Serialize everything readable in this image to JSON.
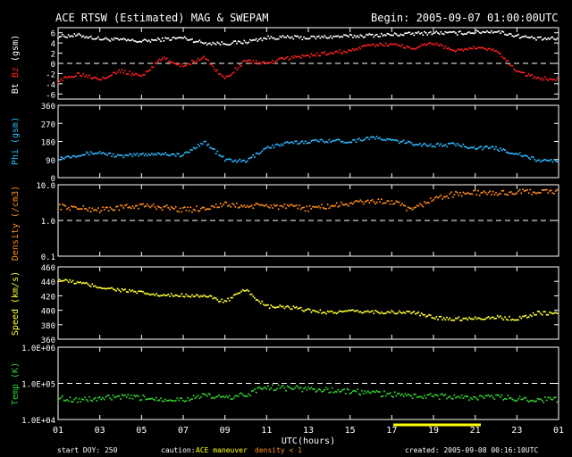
{
  "header": {
    "title": "ACE RTSW (Estimated) MAG & SWEPAM",
    "begin": "Begin: 2005-09-07 01:00:00UTC"
  },
  "footer": {
    "start_doy": "start DOY: 250",
    "caution_label": "caution:",
    "caution_maneuver": "ACE maneuver",
    "caution_density": "density < 1",
    "created": "created: 2005-09-08 00:16:10UTC"
  },
  "colors": {
    "bt": "#ffffff",
    "bz": "#ff2020",
    "phi": "#30b8ff",
    "density": "#ff8c1a",
    "speed": "#ffff30",
    "temp": "#30d030",
    "frame": "#ffffff",
    "maneuver": "#ffff00",
    "density_low": "#ff8c1a"
  },
  "chart_data": [
    {
      "type": "scatter",
      "panel": "mag",
      "ylabel_parts": [
        "Bt",
        "Bz",
        "(gsm)"
      ],
      "xlabel": "UTC(hours)",
      "xticks": [
        "01",
        "03",
        "05",
        "07",
        "09",
        "11",
        "13",
        "15",
        "17",
        "19",
        "21",
        "23",
        "01"
      ],
      "ylim": [
        -7,
        7
      ],
      "yticks": [
        6,
        4,
        2,
        0,
        -2,
        -4,
        -6
      ],
      "ytick_labels": [
        "6",
        "4",
        "2",
        "0",
        "-2",
        "-4",
        "-6"
      ],
      "ref_lines": [
        0
      ],
      "series": [
        {
          "name": "Bt",
          "color": "#ffffff",
          "x": [
            0,
            1,
            2,
            3,
            4,
            5,
            6,
            7,
            8,
            9,
            10,
            11,
            12,
            13,
            14,
            15,
            16,
            17,
            18,
            19,
            20,
            21,
            22,
            23
          ],
          "y": [
            5.3,
            5.5,
            4.8,
            4.6,
            4.3,
            4.7,
            5.0,
            4.0,
            3.9,
            4.2,
            5.0,
            5.1,
            5.0,
            5.2,
            5.3,
            5.5,
            5.6,
            5.8,
            6.0,
            5.9,
            6.1,
            6.3,
            5.4,
            4.8
          ]
        },
        {
          "name": "Bz",
          "color": "#ff2020",
          "x": [
            0,
            1,
            2,
            3,
            4,
            5,
            6,
            7,
            8,
            9,
            10,
            11,
            12,
            13,
            14,
            15,
            16,
            17,
            18,
            19,
            20,
            21,
            22,
            23
          ],
          "y": [
            -3.5,
            -2.0,
            -3.0,
            -1.5,
            -2.5,
            1.0,
            -0.5,
            1.2,
            -3.0,
            0.5,
            0.0,
            1.0,
            1.5,
            2.0,
            2.5,
            3.5,
            3.8,
            3.0,
            4.0,
            2.5,
            3.0,
            2.5,
            -1.5,
            -3.0
          ]
        }
      ]
    },
    {
      "type": "scatter",
      "panel": "phi",
      "ylabel": "Phi (gsm)",
      "ylim": [
        0,
        360
      ],
      "yticks": [
        360,
        270,
        180,
        90,
        0
      ],
      "ytick_labels": [
        "360",
        "270",
        "180",
        "90",
        "0"
      ],
      "series": [
        {
          "name": "Phi",
          "color": "#30b8ff",
          "x": [
            0,
            1,
            2,
            3,
            4,
            5,
            6,
            7,
            8,
            9,
            10,
            11,
            12,
            13,
            14,
            15,
            16,
            17,
            18,
            19,
            20,
            21,
            22,
            23
          ],
          "y": [
            95,
            115,
            125,
            105,
            115,
            120,
            110,
            180,
            90,
            80,
            150,
            170,
            180,
            185,
            180,
            200,
            185,
            170,
            160,
            165,
            150,
            145,
            120,
            85
          ]
        }
      ]
    },
    {
      "type": "scatter",
      "panel": "density",
      "ylabel": "Density (/cm3)",
      "yscale": "log",
      "ylim": [
        0.1,
        10.0
      ],
      "yticks": [
        10.0,
        1.0,
        0.1
      ],
      "ytick_labels": [
        "10.0",
        "1.0",
        "0.1"
      ],
      "ref_lines": [
        1.0
      ],
      "series": [
        {
          "name": "Density",
          "color": "#ff8c1a",
          "x": [
            0,
            1,
            2,
            3,
            4,
            5,
            6,
            7,
            8,
            9,
            10,
            11,
            12,
            13,
            14,
            15,
            16,
            17,
            18,
            19,
            20,
            21,
            22,
            23
          ],
          "y": [
            2.5,
            2.2,
            2.0,
            2.3,
            2.6,
            2.4,
            2.0,
            2.2,
            2.8,
            2.5,
            2.6,
            2.4,
            2.2,
            2.5,
            3.0,
            3.5,
            3.3,
            1.8,
            4.0,
            5.5,
            6.0,
            5.8,
            6.2,
            6.5
          ]
        }
      ]
    },
    {
      "type": "scatter",
      "panel": "speed",
      "ylabel": "Speed (km/s)",
      "ylim": [
        360,
        460
      ],
      "yticks": [
        460,
        440,
        420,
        400,
        380,
        360
      ],
      "ytick_labels": [
        "460",
        "440",
        "420",
        "400",
        "380",
        "360"
      ],
      "series": [
        {
          "name": "Speed",
          "color": "#ffff30",
          "x": [
            0,
            1,
            2,
            3,
            4,
            5,
            6,
            7,
            8,
            9,
            10,
            11,
            12,
            13,
            14,
            15,
            16,
            17,
            18,
            19,
            20,
            21,
            22,
            23
          ],
          "y": [
            442,
            438,
            432,
            428,
            424,
            420,
            421,
            420,
            412,
            428,
            405,
            404,
            400,
            397,
            398,
            398,
            397,
            397,
            390,
            388,
            389,
            390,
            388,
            396
          ]
        }
      ]
    },
    {
      "type": "scatter",
      "panel": "temp",
      "ylabel": "Temp (K)",
      "yscale": "log",
      "ylim": [
        10000,
        1000000
      ],
      "yticks": [
        1000000,
        100000,
        10000
      ],
      "ytick_labels": [
        "1.0E+06",
        "1.0E+05",
        "1.0E+04"
      ],
      "ref_lines": [
        100000
      ],
      "series": [
        {
          "name": "Temp",
          "color": "#30d030",
          "x": [
            0,
            1,
            2,
            3,
            4,
            5,
            6,
            7,
            8,
            9,
            10,
            11,
            12,
            13,
            14,
            15,
            16,
            17,
            18,
            19,
            20,
            21,
            22,
            23
          ],
          "y": [
            40000,
            35000,
            38000,
            42000,
            40000,
            37000,
            36000,
            45000,
            40000,
            48000,
            80000,
            75000,
            70000,
            65000,
            60000,
            55000,
            50000,
            45000,
            45000,
            42000,
            40000,
            42000,
            38000,
            36000
          ]
        }
      ]
    }
  ]
}
